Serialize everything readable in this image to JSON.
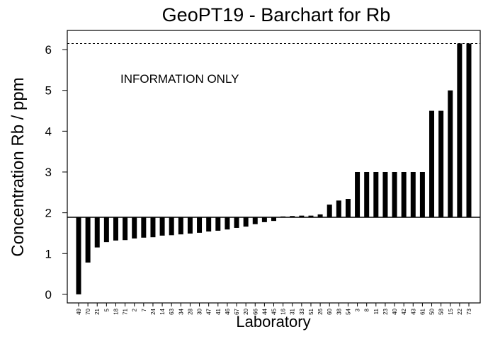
{
  "chart_data": {
    "type": "bar",
    "title": "GeoPT19 - Barchart for Rb",
    "annotation": "INFORMATION ONLY",
    "y_label": "Concentration Rb / ppm",
    "x_label": "Laboratory",
    "categories": [
      "49",
      "70",
      "21",
      "5",
      "18",
      "71",
      "2",
      "7",
      "24",
      "14",
      "63",
      "34",
      "28",
      "30",
      "47",
      "41",
      "46",
      "67",
      "20",
      "66",
      "44",
      "45",
      "16",
      "31",
      "33",
      "51",
      "26",
      "60",
      "38",
      "54",
      "3",
      "8",
      "11",
      "23",
      "40",
      "42",
      "43",
      "61",
      "50",
      "58",
      "15",
      "22",
      "73"
    ],
    "values": [
      0.0,
      0.78,
      1.15,
      1.28,
      1.32,
      1.33,
      1.37,
      1.39,
      1.4,
      1.44,
      1.45,
      1.47,
      1.49,
      1.51,
      1.54,
      1.56,
      1.59,
      1.63,
      1.66,
      1.72,
      1.77,
      1.8,
      1.91,
      1.92,
      1.93,
      1.93,
      1.96,
      2.2,
      2.3,
      2.34,
      3,
      3,
      3,
      3,
      3,
      3,
      3,
      3,
      4.5,
      4.5,
      5,
      6.15,
      6.15
    ],
    "color": "#000000",
    "baseline": 1.89,
    "dashed_line": 6.15,
    "ylim": [
      -0.21,
      6.47
    ],
    "yticks": [
      0,
      1,
      2,
      3,
      4,
      5,
      6
    ]
  }
}
